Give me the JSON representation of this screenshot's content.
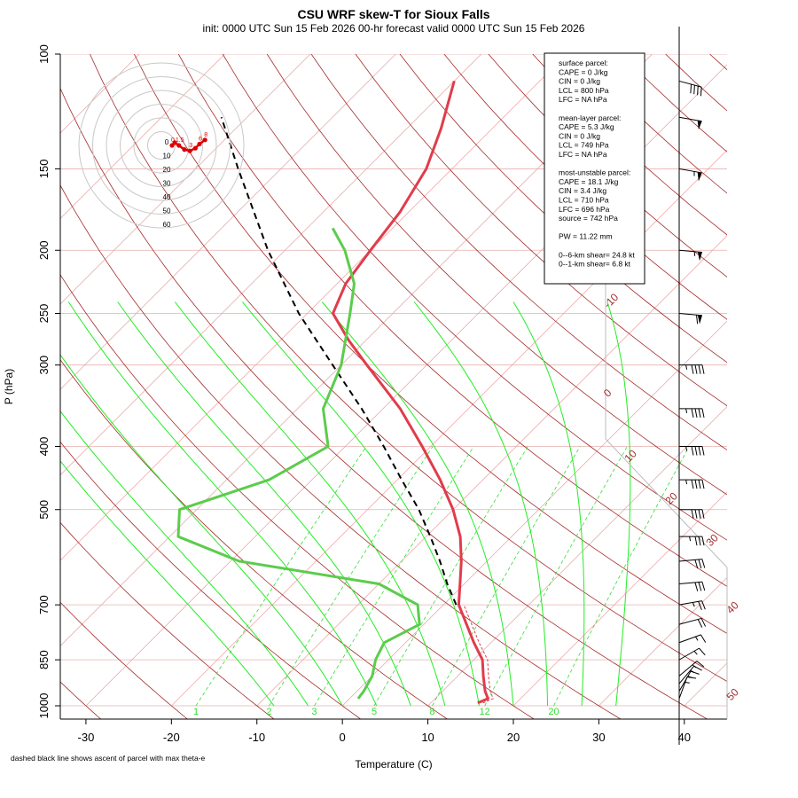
{
  "chart_data": {
    "type": "skew-t",
    "title": "CSU WRF skew-T for Sioux Falls",
    "subtitle": "init: 0000 UTC Sun 15 Feb 2026     00-hr forecast valid 0000 UTC Sun 15 Feb 2026",
    "xlabel": "Temperature (C)",
    "ylabel": "P (hPa)",
    "footnote": "dashed black line shows ascent of parcel with max theta-e",
    "xlim": [
      -33,
      45
    ],
    "ylim": [
      1000,
      100
    ],
    "x_ticks": [
      -30,
      -20,
      -10,
      0,
      10,
      20,
      30,
      40
    ],
    "p_ticks": [
      1000,
      850,
      700,
      500,
      400,
      300,
      250,
      200,
      150,
      100
    ],
    "p_tick_labels": [
      "1000",
      "850",
      "700",
      "500",
      "400",
      "300",
      "250",
      "200",
      "150",
      "100"
    ],
    "x_tick_labels": [
      "-30",
      "-20",
      "-10",
      "0",
      "10",
      "20",
      "30",
      "40"
    ],
    "isotherm_labels": [
      {
        "t": -10,
        "text": "-10"
      },
      {
        "t": 0,
        "text": "0"
      },
      {
        "t": 10,
        "text": "10"
      },
      {
        "t": 20,
        "text": "20"
      },
      {
        "t": 30,
        "text": "30"
      },
      {
        "t": 40,
        "text": "40"
      },
      {
        "t": 50,
        "text": "50"
      }
    ],
    "mixing_ratio_labels": [
      "1",
      "2",
      "3",
      "5",
      "8",
      "12",
      "20"
    ],
    "mixing_ratios": [
      1,
      2,
      3,
      5,
      8,
      12,
      20
    ],
    "temperature": {
      "p": [
        990,
        975,
        950,
        900,
        850,
        800,
        750,
        700,
        650,
        600,
        550,
        500,
        450,
        400,
        350,
        300,
        275,
        250,
        225,
        200,
        175,
        150,
        130,
        110
      ],
      "t": [
        15.5,
        16.2,
        15.0,
        13.0,
        11.0,
        8.0,
        5.0,
        1.8,
        -0.5,
        -3.0,
        -6.0,
        -10.0,
        -15.0,
        -21.0,
        -28.0,
        -37.0,
        -42.0,
        -47.0,
        -49.0,
        -50.0,
        -51.0,
        -53.0,
        -56.0,
        -60.0
      ]
    },
    "dewpoint": {
      "p": [
        975,
        950,
        900,
        850,
        800,
        750,
        700,
        650,
        600,
        550,
        500,
        450,
        400,
        350,
        300,
        250,
        225,
        200,
        185
      ],
      "td": [
        1.0,
        0.8,
        0.0,
        -1.5,
        -2.5,
        -0.5,
        -3.0,
        -10.0,
        -29.0,
        -39.0,
        -42.0,
        -35.0,
        -32.0,
        -37.0,
        -40.0,
        -45.0,
        -48.0,
        -53.0,
        -57.0
      ]
    },
    "parcel": {
      "p": [
        700,
        650,
        600,
        550,
        500,
        450,
        400,
        350,
        300,
        250,
        200,
        150,
        125
      ],
      "t": [
        1.5,
        -2.0,
        -5.5,
        -9.5,
        -14.0,
        -19.5,
        -25.5,
        -32.5,
        -41.0,
        -51.0,
        -62.0,
        -75.0,
        -83.0
      ]
    },
    "wind_barbs": {
      "p": [
        975,
        950,
        925,
        900,
        850,
        800,
        750,
        700,
        650,
        600,
        550,
        500,
        450,
        400,
        350,
        300,
        250,
        200,
        150,
        125,
        110
      ],
      "speed_kt": [
        15,
        15,
        15,
        15,
        15,
        15,
        20,
        25,
        30,
        30,
        35,
        40,
        45,
        45,
        45,
        45,
        60,
        55,
        55,
        50,
        40
      ],
      "dir_deg": [
        200,
        210,
        220,
        230,
        240,
        250,
        255,
        260,
        265,
        265,
        270,
        270,
        270,
        270,
        270,
        270,
        275,
        275,
        280,
        280,
        285
      ]
    },
    "hodograph": {
      "ring_labels": [
        "0",
        "10",
        "20",
        "30",
        "40",
        "50",
        "60"
      ],
      "point_labels": [
        "0",
        "1.5",
        "3",
        "6",
        "8"
      ],
      "u": [
        0,
        2,
        5,
        9,
        13,
        17,
        20,
        24
      ],
      "v": [
        0,
        -2,
        0,
        3,
        4,
        2,
        -1,
        -4
      ]
    },
    "stability_text": [
      "surface parcel:",
      "CAPE = 0 J/kg",
      "CIN = 0 J/kg",
      "LCL = 800 hPa",
      "LFC = NA hPa",
      "",
      "mean-layer parcel:",
      "CAPE = 5.3 J/kg",
      "CIN = 0 J/kg",
      "LCL = 749 hPa",
      "LFC = NA hPa",
      "",
      "most-unstable parcel:",
      "CAPE = 18.1 J/kg",
      "CIN = 3.4 J/kg",
      "LCL = 710 hPa",
      "LFC = 696 hPa",
      "source = 742 hPa",
      "",
      "PW =   11.22 mm",
      "",
      "0--6-km shear= 24.8 kt",
      "0--1-km shear= 6.8 kt"
    ],
    "colors": {
      "temperature": "#e03c4c",
      "dewpoint": "#5ccc4c",
      "parcel": "#000000",
      "isotherm": "#e8a0a0",
      "isobar": "#e8b0b0",
      "dry_adiabat": "#a52a2a",
      "moist_adiabat": "#22ee22",
      "mixing_ratio": "#33dd33"
    }
  }
}
